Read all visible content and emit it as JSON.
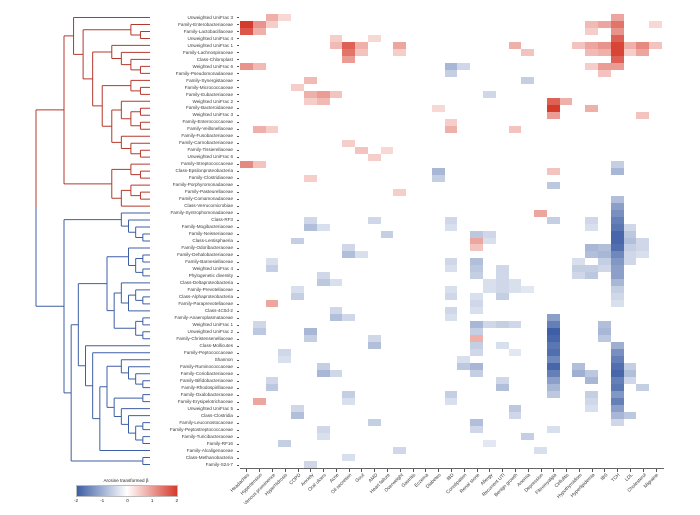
{
  "chart_data": {
    "type": "heatmap",
    "title": "",
    "colorbar": {
      "title": "Arcsine transformed β",
      "ticks": [
        "-2",
        "-1",
        "0",
        "1",
        "2"
      ],
      "min": -2,
      "max": 2,
      "neg_color": "#3e5fa5",
      "pos_color": "#d63a2b"
    },
    "dendrogram": {
      "clusters": [
        {
          "name": "upper-cluster",
          "color": "#b5382d",
          "row_start": 1,
          "row_end": 28
        },
        {
          "name": "lower-cluster",
          "color": "#3e5fa5",
          "row_start": 29,
          "row_end": 65
        }
      ]
    },
    "rows": [
      "Unweighted UniFrac 3",
      "Family-Enterobacteriaceae",
      "Family-Lactobacillaceae",
      "Unweighted UniFrac 4",
      "Unweighted UniFrac 1",
      "Family-Lachnospiraceae",
      "Class-Chloroplast",
      "Weighted UniFrac 6",
      "Family-Pseudomonadaceae",
      "Family-Synergistaceae",
      "Family-Micrococcaceae",
      "Family-Eubacteriaceae",
      "Weighted UniFrac 2",
      "Family-Bacteroidaceae",
      "Weighted UniFrac 3",
      "Family-Enterococcaceae",
      "Family-Veillonellaceae",
      "Family-Fusobacteriaceae",
      "Family-Carnobacteriaceae",
      "Family-Tissierellaceae",
      "Unweighted UniFrac 6",
      "Family-Streptococcaceae",
      "Class-Epsilonproteobacteria",
      "Family-Clostridiaceae",
      "Family-Porphyromonadaceae",
      "Family-Pasteurellaceae",
      "Family-Comamonadaceae",
      "Class-Verrucomicrobiae",
      "Family-Syntrophomonadaceae",
      "Class-RF3",
      "Family-Mogibacteriaceae",
      "Family-Neisseriaceae",
      "Class-Lentisphaeria",
      "Family-Odoribacteraceae",
      "Family-Dehalobacteriaceae",
      "Family-Barnesiellaceae",
      "Weighted UniFrac 4",
      "Phylogenetic diversity",
      "Class-Deltaproteobacteria",
      "Family-Prevotellaceae",
      "Class-Alphaproteobacteria",
      "Family-Paraprevotellaceae",
      "Class-4C0d-2",
      "Family-Anaeroplasmataceae",
      "Weighted UniFrac 1",
      "Unweighted UniFrac 2",
      "Family-Christensenellaceae",
      "Class-Mollicutes",
      "Family-Peptococcaceae",
      "Shannon",
      "Family-Ruminococcaceae",
      "Family-Coriobacteriaceae",
      "Family-Bifidobacteriaceae",
      "Family-Rhodospirillaceae",
      "Family-Oxalobacteraceae",
      "Family-Erysipelotrichaceae",
      "Unweighted UniFrac 5",
      "Class-Clostridia",
      "Family-Leuconostocaceae",
      "Family-Peptostreptococcaceae",
      "Family-Turicibacteraceae",
      "Family-RF16",
      "Family-Alcaligenaceae",
      "Class-Methanobacteria",
      "Family-S24-7"
    ],
    "columns": [
      "Headaches",
      "Hypertension",
      "Venous prominence",
      "Hyperhidrosis",
      "COPD",
      "Anxiety",
      "Oral ulcers",
      "Acne",
      "Oil secretion",
      "Gout",
      "AMD",
      "Heart failure",
      "Overweight",
      "Gastritis",
      "Eczema",
      "Diabetes",
      "IBD",
      "Constipation",
      "Renal stone",
      "Allergy",
      "Recurrent UTI",
      "Benign growth",
      "Anemia",
      "Depression",
      "Fibromyalgia",
      "Cellulitis",
      "Hypothyroidism",
      "Hyperlipidemia",
      "IBS",
      "TCH",
      "LDL",
      "Cholesterol",
      "Migraine"
    ],
    "cells": [
      [
        2,
        1,
        2
      ],
      [
        3,
        1,
        1.7
      ],
      [
        2,
        2,
        1.1
      ],
      [
        3,
        2,
        0.8
      ],
      [
        1,
        3,
        0.8
      ],
      [
        1,
        4,
        0.4
      ],
      [
        2,
        3,
        0.5
      ],
      [
        4,
        8,
        0.5
      ],
      [
        5,
        8,
        0.7
      ],
      [
        5,
        9,
        1.6
      ],
      [
        6,
        9,
        1.4
      ],
      [
        5,
        10,
        0.8
      ],
      [
        6,
        10,
        0.6
      ],
      [
        4,
        11,
        0.4
      ],
      [
        5,
        13,
        0.9
      ],
      [
        6,
        13,
        0.5
      ],
      [
        7,
        9,
        1.0
      ],
      [
        8,
        1,
        1.1
      ],
      [
        8,
        2,
        0.7
      ],
      [
        10,
        6,
        0.7
      ],
      [
        11,
        5,
        0.5
      ],
      [
        12,
        6,
        0.8
      ],
      [
        12,
        7,
        1.0
      ],
      [
        12,
        8,
        0.6
      ],
      [
        13,
        6,
        0.5
      ],
      [
        13,
        7,
        0.7
      ],
      [
        8,
        17,
        -0.9
      ],
      [
        8,
        18,
        -0.5
      ],
      [
        9,
        17,
        -0.6
      ],
      [
        10,
        23,
        -0.6
      ],
      [
        12,
        20,
        -0.5
      ],
      [
        5,
        22,
        0.8
      ],
      [
        6,
        23,
        0.6
      ],
      [
        1,
        30,
        0.9
      ],
      [
        2,
        30,
        1.4
      ],
      [
        3,
        30,
        1.1
      ],
      [
        4,
        30,
        1.6
      ],
      [
        5,
        30,
        1.9
      ],
      [
        6,
        30,
        1.9
      ],
      [
        7,
        30,
        1.6
      ],
      [
        8,
        30,
        1.0
      ],
      [
        2,
        28,
        0.7
      ],
      [
        2,
        29,
        0.9
      ],
      [
        3,
        28,
        0.5
      ],
      [
        5,
        27,
        0.6
      ],
      [
        5,
        28,
        0.9
      ],
      [
        5,
        29,
        1.1
      ],
      [
        5,
        31,
        0.8
      ],
      [
        5,
        32,
        1.2
      ],
      [
        5,
        33,
        0.6
      ],
      [
        6,
        28,
        0.7
      ],
      [
        6,
        29,
        0.8
      ],
      [
        6,
        31,
        0.5
      ],
      [
        6,
        32,
        0.9
      ],
      [
        8,
        28,
        0.5
      ],
      [
        8,
        29,
        1.0
      ],
      [
        9,
        29,
        0.6
      ],
      [
        2,
        33,
        0.4
      ],
      [
        13,
        25,
        1.6
      ],
      [
        14,
        25,
        2
      ],
      [
        15,
        25,
        1.0
      ],
      [
        13,
        26,
        0.8
      ],
      [
        14,
        28,
        0.8
      ],
      [
        15,
        32,
        0.6
      ],
      [
        14,
        16,
        0.4
      ],
      [
        16,
        17,
        0.5
      ],
      [
        17,
        17,
        0.8
      ],
      [
        17,
        2,
        0.8
      ],
      [
        17,
        3,
        0.5
      ],
      [
        17,
        22,
        0.6
      ],
      [
        19,
        9,
        0.5
      ],
      [
        20,
        10,
        0.6
      ],
      [
        20,
        12,
        0.4
      ],
      [
        21,
        11,
        0.5
      ],
      [
        22,
        1,
        1.2
      ],
      [
        22,
        2,
        0.6
      ],
      [
        23,
        16,
        -0.9
      ],
      [
        24,
        16,
        -0.6
      ],
      [
        23,
        25,
        0.6
      ],
      [
        24,
        6,
        0.5
      ],
      [
        25,
        25,
        -0.7
      ],
      [
        26,
        13,
        0.5
      ],
      [
        22,
        30,
        -0.6
      ],
      [
        23,
        30,
        -0.9
      ],
      [
        27,
        30,
        -0.8
      ],
      [
        28,
        30,
        -1.2
      ],
      [
        29,
        24,
        0.9
      ],
      [
        30,
        25,
        -0.6
      ],
      [
        29,
        30,
        -1.4
      ],
      [
        30,
        30,
        -1.6
      ],
      [
        31,
        30,
        -1.7
      ],
      [
        32,
        30,
        -1.9
      ],
      [
        33,
        30,
        -1.9
      ],
      [
        34,
        30,
        -1.8
      ],
      [
        35,
        30,
        -1.5
      ],
      [
        36,
        30,
        -1.3
      ],
      [
        37,
        30,
        -1.2
      ],
      [
        38,
        30,
        -1.2
      ],
      [
        39,
        30,
        -0.9
      ],
      [
        40,
        30,
        -0.6
      ],
      [
        41,
        30,
        -0.5
      ],
      [
        42,
        30,
        -0.4
      ],
      [
        31,
        31,
        -0.5
      ],
      [
        32,
        31,
        -0.7
      ],
      [
        33,
        31,
        -0.8
      ],
      [
        34,
        31,
        -0.6
      ],
      [
        35,
        31,
        -0.5
      ],
      [
        36,
        31,
        -0.5
      ],
      [
        33,
        32,
        -0.5
      ],
      [
        34,
        32,
        -0.5
      ],
      [
        35,
        32,
        -0.4
      ],
      [
        34,
        29,
        -0.8
      ],
      [
        35,
        29,
        -0.9
      ],
      [
        36,
        29,
        -0.6
      ],
      [
        37,
        29,
        -0.5
      ],
      [
        30,
        28,
        -0.5
      ],
      [
        31,
        28,
        -0.4
      ],
      [
        34,
        28,
        -0.9
      ],
      [
        35,
        28,
        -0.8
      ],
      [
        37,
        27,
        -0.6
      ],
      [
        38,
        27,
        -0.5
      ],
      [
        37,
        28,
        -0.6
      ],
      [
        38,
        28,
        -0.7
      ],
      [
        36,
        27,
        -0.4
      ],
      [
        33,
        19,
        0.9
      ],
      [
        34,
        19,
        0.6
      ],
      [
        30,
        6,
        -0.5
      ],
      [
        31,
        6,
        -0.8
      ],
      [
        31,
        7,
        -0.4
      ],
      [
        33,
        5,
        -0.6
      ],
      [
        34,
        9,
        -0.5
      ],
      [
        35,
        9,
        -0.8
      ],
      [
        35,
        10,
        -0.4
      ],
      [
        36,
        3,
        -0.4
      ],
      [
        37,
        3,
        -0.6
      ],
      [
        38,
        7,
        -0.5
      ],
      [
        39,
        7,
        -0.7
      ],
      [
        39,
        8,
        -0.4
      ],
      [
        40,
        5,
        -0.4
      ],
      [
        41,
        5,
        -0.6
      ],
      [
        42,
        3,
        0.9
      ],
      [
        43,
        8,
        -0.5
      ],
      [
        44,
        8,
        -0.8
      ],
      [
        44,
        9,
        -0.5
      ],
      [
        45,
        2,
        -0.5
      ],
      [
        46,
        2,
        -0.7
      ],
      [
        46,
        6,
        -0.9
      ],
      [
        47,
        6,
        -0.6
      ],
      [
        47,
        11,
        -0.5
      ],
      [
        48,
        11,
        -0.8
      ],
      [
        49,
        4,
        -0.5
      ],
      [
        50,
        4,
        -0.4
      ],
      [
        51,
        7,
        -0.6
      ],
      [
        52,
        7,
        -0.9
      ],
      [
        52,
        8,
        -0.5
      ],
      [
        53,
        3,
        -0.5
      ],
      [
        54,
        3,
        -0.7
      ],
      [
        55,
        9,
        -0.6
      ],
      [
        56,
        9,
        -0.4
      ],
      [
        56,
        2,
        0.9
      ],
      [
        57,
        5,
        -0.5
      ],
      [
        58,
        5,
        -0.8
      ],
      [
        59,
        11,
        -0.6
      ],
      [
        60,
        7,
        -0.5
      ],
      [
        61,
        7,
        -0.4
      ],
      [
        62,
        4,
        -0.6
      ],
      [
        63,
        13,
        -0.5
      ],
      [
        64,
        9,
        -0.4
      ],
      [
        65,
        6,
        -0.5
      ],
      [
        30,
        17,
        -0.5
      ],
      [
        31,
        17,
        -0.4
      ],
      [
        32,
        19,
        -0.7
      ],
      [
        32,
        20,
        -0.5
      ],
      [
        33,
        20,
        -0.4
      ],
      [
        36,
        19,
        -0.8
      ],
      [
        37,
        19,
        -0.7
      ],
      [
        38,
        19,
        -0.6
      ],
      [
        36,
        17,
        -0.5
      ],
      [
        37,
        17,
        -0.4
      ],
      [
        37,
        21,
        -0.5
      ],
      [
        38,
        21,
        -0.5
      ],
      [
        39,
        20,
        -0.4
      ],
      [
        39,
        21,
        -0.5
      ],
      [
        39,
        22,
        -0.4
      ],
      [
        40,
        20,
        -0.4
      ],
      [
        40,
        21,
        -0.5
      ],
      [
        40,
        22,
        -0.4
      ],
      [
        40,
        23,
        -0.3
      ],
      [
        41,
        21,
        -0.6
      ],
      [
        41,
        17,
        -0.5
      ],
      [
        40,
        17,
        -0.4
      ],
      [
        43,
        17,
        -0.5
      ],
      [
        44,
        17,
        -0.4
      ],
      [
        41,
        19,
        -0.4
      ],
      [
        42,
        19,
        -0.5
      ],
      [
        43,
        19,
        -0.4
      ],
      [
        45,
        19,
        -0.9
      ],
      [
        46,
        19,
        -0.6
      ],
      [
        45,
        20,
        -0.5
      ],
      [
        45,
        21,
        -0.6
      ],
      [
        45,
        22,
        -0.5
      ],
      [
        47,
        19,
        0.8
      ],
      [
        48,
        19,
        -0.6
      ],
      [
        49,
        19,
        -0.5
      ],
      [
        30,
        11,
        -0.5
      ],
      [
        32,
        12,
        -0.6
      ],
      [
        44,
        25,
        -1.2
      ],
      [
        45,
        25,
        -1.6
      ],
      [
        46,
        25,
        -2
      ],
      [
        47,
        25,
        -1.9
      ],
      [
        48,
        25,
        -1.7
      ],
      [
        49,
        25,
        -1.8
      ],
      [
        50,
        25,
        -1.5
      ],
      [
        51,
        25,
        -1.9
      ],
      [
        52,
        25,
        -1.6
      ],
      [
        53,
        25,
        -1.2
      ],
      [
        54,
        25,
        -0.9
      ],
      [
        55,
        25,
        -0.7
      ],
      [
        45,
        29,
        -0.8
      ],
      [
        46,
        29,
        -0.9
      ],
      [
        47,
        29,
        -0.7
      ],
      [
        48,
        30,
        -1.0
      ],
      [
        49,
        30,
        -1.4
      ],
      [
        50,
        30,
        -1.6
      ],
      [
        51,
        30,
        -1.8
      ],
      [
        52,
        30,
        -1.9
      ],
      [
        53,
        30,
        -1.6
      ],
      [
        54,
        30,
        -1.7
      ],
      [
        55,
        30,
        -1.3
      ],
      [
        56,
        30,
        -1.6
      ],
      [
        57,
        30,
        -1.2
      ],
      [
        58,
        30,
        -0.9
      ],
      [
        59,
        30,
        -0.5
      ],
      [
        51,
        27,
        -0.8
      ],
      [
        52,
        27,
        -1.0
      ],
      [
        52,
        28,
        -0.7
      ],
      [
        53,
        28,
        -0.9
      ],
      [
        54,
        32,
        -0.6
      ],
      [
        56,
        28,
        -0.5
      ],
      [
        58,
        31,
        -0.7
      ],
      [
        51,
        31,
        -0.6
      ],
      [
        52,
        31,
        -0.8
      ],
      [
        53,
        31,
        -0.5
      ],
      [
        55,
        28,
        -0.6
      ],
      [
        57,
        28,
        -0.4
      ],
      [
        48,
        21,
        -0.4
      ],
      [
        49,
        22,
        -0.3
      ],
      [
        50,
        18,
        -0.4
      ],
      [
        51,
        18,
        -0.7
      ],
      [
        51,
        19,
        -0.9
      ],
      [
        52,
        19,
        -0.6
      ],
      [
        53,
        21,
        -0.5
      ],
      [
        54,
        21,
        -0.8
      ],
      [
        55,
        17,
        -0.6
      ],
      [
        56,
        17,
        -0.4
      ],
      [
        57,
        22,
        -0.7
      ],
      [
        58,
        22,
        -0.5
      ],
      [
        59,
        19,
        -0.8
      ],
      [
        60,
        19,
        -0.5
      ],
      [
        61,
        23,
        -0.6
      ],
      [
        60,
        25,
        -0.4
      ],
      [
        62,
        20,
        -0.3
      ],
      [
        63,
        24,
        -0.4
      ]
    ],
    "layout": {
      "grid": false,
      "legend_position": "bottom-left"
    }
  }
}
